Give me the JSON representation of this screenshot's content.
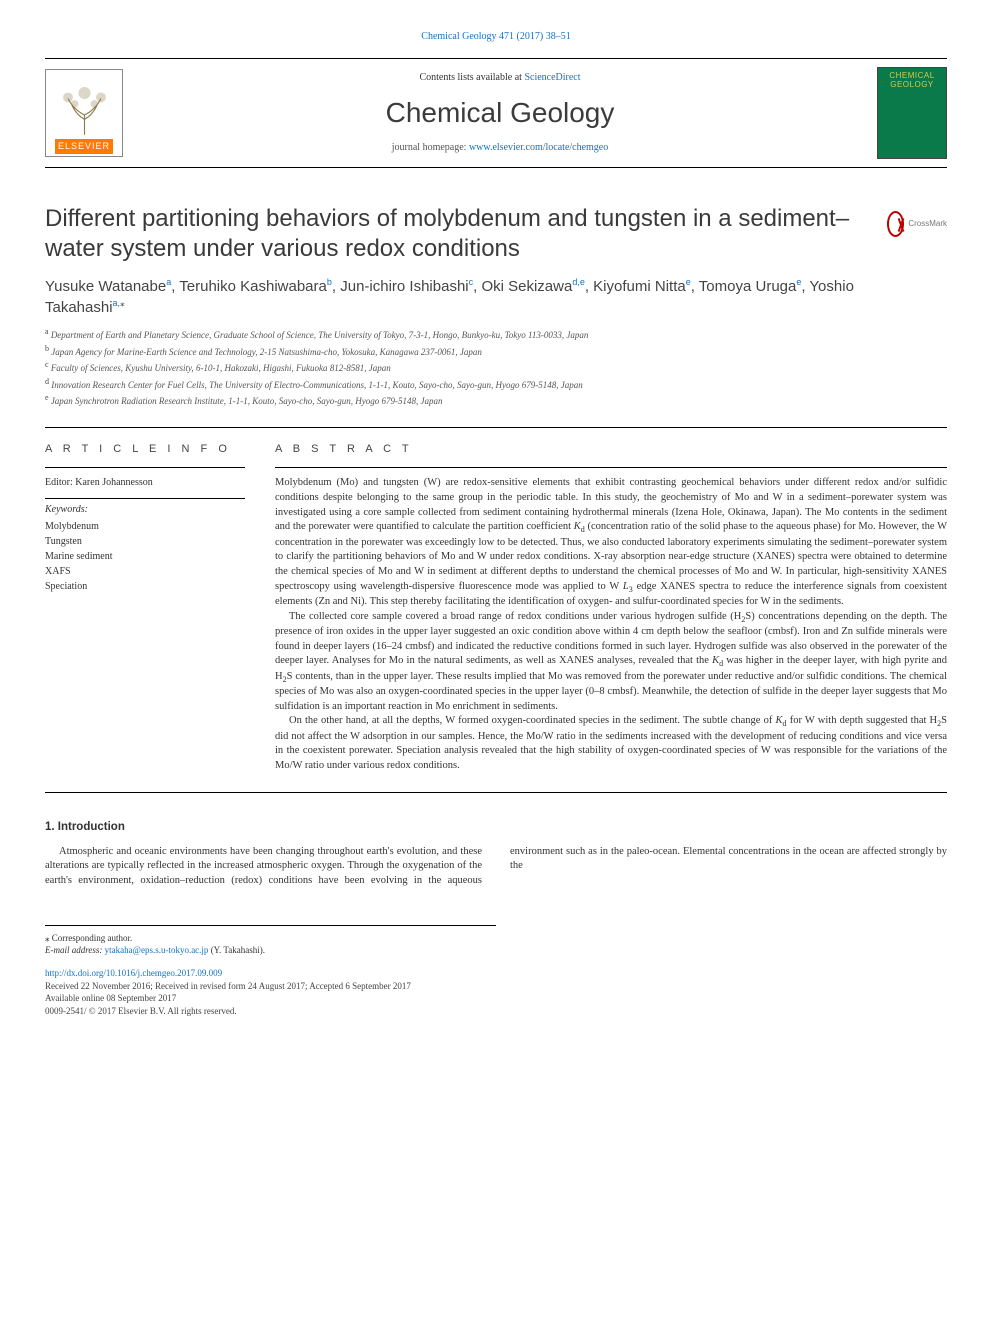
{
  "top_citation": "Chemical Geology 471 (2017) 38–51",
  "contents_prefix": "Contents lists available at ",
  "contents_link": "ScienceDirect",
  "journal_name": "Chemical Geology",
  "homepage_prefix": "journal homepage: ",
  "homepage_url": "www.elsevier.com/locate/chemgeo",
  "elsevier_label": "ELSEVIER",
  "cover_title": "CHEMICAL GEOLOGY",
  "crossmark_label": "CrossMark",
  "title": "Different partitioning behaviors of molybdenum and tungsten in a sediment–water system under various redox conditions",
  "authors_html": "Yusuke Watanabe<a class='sup'><sup>a</sup></a>, Teruhiko Kashiwabara<a class='sup'><sup>b</sup></a>, Jun-ichiro Ishibashi<a class='sup'><sup>c</sup></a>, Oki Sekizawa<a class='sup'><sup>d,e</sup></a>, Kiyofumi Nitta<a class='sup'><sup>e</sup></a>, Tomoya Uruga<a class='sup'><sup>e</sup></a>, Yoshio Takahashi<a class='sup'><sup>a,</sup></a><sup>⁎</sup>",
  "affiliations": {
    "a": "Department of Earth and Planetary Science, Graduate School of Science, The University of Tokyo, 7-3-1, Hongo, Bunkyo-ku, Tokyo 113-0033, Japan",
    "b": "Japan Agency for Marine-Earth Science and Technology, 2-15 Natsushima-cho, Yokosuka, Kanagawa 237-0061, Japan",
    "c": "Faculty of Sciences, Kyushu University, 6-10-1, Hakozaki, Higashi, Fukuoka 812-8581, Japan",
    "d": "Innovation Research Center for Fuel Cells, The University of Electro-Communications, 1-1-1, Kouto, Sayo-cho, Sayo-gun, Hyogo 679-5148, Japan",
    "e": "Japan Synchrotron Radiation Research Institute, 1-1-1, Kouto, Sayo-cho, Sayo-gun, Hyogo 679-5148, Japan"
  },
  "info_head": "A R T I C L E  I N F O",
  "abstract_head": "A B S T R A C T",
  "editor": "Editor: Karen Johannesson",
  "keywords_label": "Keywords:",
  "keywords": [
    "Molybdenum",
    "Tungsten",
    "Marine sediment",
    "XAFS",
    "Speciation"
  ],
  "abstract_paragraphs": [
    "Molybdenum (Mo) and tungsten (W) are redox-sensitive elements that exhibit contrasting geochemical behaviors under different redox and/or sulfidic conditions despite belonging to the same group in the periodic table. In this study, the geochemistry of Mo and W in a sediment–porewater system was investigated using a core sample collected from sediment containing hydrothermal minerals (Izena Hole, Okinawa, Japan). The Mo contents in the sediment and the porewater were quantified to calculate the partition coefficient <i>K</i><sub>d</sub> (concentration ratio of the solid phase to the aqueous phase) for Mo. However, the W concentration in the porewater was exceedingly low to be detected. Thus, we also conducted laboratory experiments simulating the sediment–porewater system to clarify the partitioning behaviors of Mo and W under redox conditions. X-ray absorption near-edge structure (XANES) spectra were obtained to determine the chemical species of Mo and W in sediment at different depths to understand the chemical processes of Mo and W. In particular, high-sensitivity XANES spectroscopy using wavelength-dispersive fluorescence mode was applied to W <i>L</i><sub>3</sub> edge XANES spectra to reduce the interference signals from coexistent elements (Zn and Ni). This step thereby facilitating the identification of oxygen- and sulfur-coordinated species for W in the sediments.",
    "The collected core sample covered a broad range of redox conditions under various hydrogen sulfide (H<sub>2</sub>S) concentrations depending on the depth. The presence of iron oxides in the upper layer suggested an oxic condition above within 4 cm depth below the seafloor (cmbsf). Iron and Zn sulfide minerals were found in deeper layers (16–24 cmbsf) and indicated the reductive conditions formed in such layer. Hydrogen sulfide was also observed in the porewater of the deeper layer. Analyses for Mo in the natural sediments, as well as XANES analyses, revealed that the <i>K</i><sub>d</sub> was higher in the deeper layer, with high pyrite and H<sub>2</sub>S contents, than in the upper layer. These results implied that Mo was removed from the porewater under reductive and/or sulfidic conditions. The chemical species of Mo was also an oxygen-coordinated species in the upper layer (0–8 cmbsf). Meanwhile, the detection of sulfide in the deeper layer suggests that Mo sulfidation is an important reaction in Mo enrichment in sediments.",
    "On the other hand, at all the depths, W formed oxygen-coordinated species in the sediment. The subtle change of <i>K</i><sub>d</sub> for W with depth suggested that H<sub>2</sub>S did not affect the W adsorption in our samples. Hence, the Mo/W ratio in the sediments increased with the development of reducing conditions and vice versa in the coexistent porewater. Speciation analysis revealed that the high stability of oxygen-coordinated species of W was responsible for the variations of the Mo/W ratio under various redox conditions."
  ],
  "intro_head": "1. Introduction",
  "intro_text": "Atmospheric and oceanic environments have been changing throughout earth's evolution, and these alterations are typically reflected in the increased atmospheric oxygen. Through the oxygenation of the earth's environment, oxidation–reduction (redox) conditions have been evolving in the aqueous environment such as in the paleo-ocean. Elemental concentrations in the ocean are affected strongly by the",
  "corresponding": "⁎ Corresponding author.",
  "email_label": "E-mail address: ",
  "email": "ytakaha@eps.s.u-tokyo.ac.jp",
  "email_author": " (Y. Takahashi).",
  "doi": "http://dx.doi.org/10.1016/j.chemgeo.2017.09.009",
  "history": "Received 22 November 2016; Received in revised form 24 August 2017; Accepted 6 September 2017",
  "available": "Available online 08 September 2017",
  "copyright": "0009-2541/ © 2017 Elsevier B.V. All rights reserved.",
  "colors": {
    "link": "#1173c7",
    "elsevier_orange": "#ff7a00",
    "cover_bg": "#0a7a4a",
    "cover_text": "#d6c94a"
  }
}
